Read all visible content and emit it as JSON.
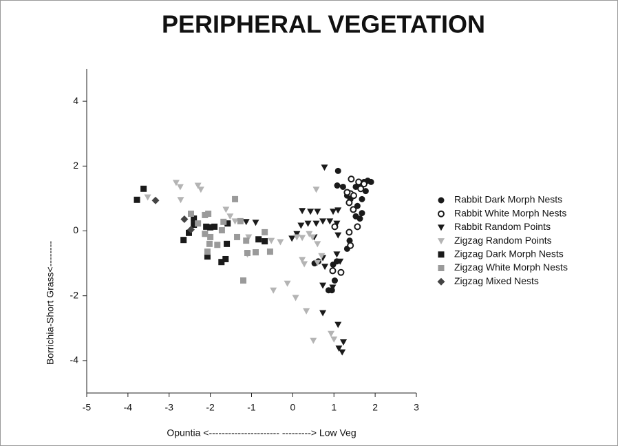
{
  "chart_data": {
    "type": "scatter",
    "title": "PERIPHERAL VEGETATION",
    "xlabel": "Opuntia <---------------------- ---------> Low Veg",
    "ylabel": "Borrichia-Short Grass<--------",
    "xlim": [
      -5,
      3
    ],
    "ylim": [
      -5,
      5
    ],
    "xticks": [
      -5,
      -4,
      -3,
      -2,
      -1,
      0,
      1,
      2,
      3
    ],
    "yticks": [
      -4,
      -2,
      0,
      2,
      4
    ],
    "legend": "right",
    "series": [
      {
        "name": "Rabbit Dark Morph Nests",
        "color": "#1a1a1a",
        "marker": "circle",
        "x": [
          1.1,
          1.08,
          1.22,
          1.32,
          1.4,
          1.53,
          1.65,
          1.73,
          1.82,
          1.9,
          1.77,
          1.68,
          1.57,
          1.53,
          1.57,
          1.63,
          1.38,
          1.32,
          1.07,
          0.98,
          1.02,
          0.95,
          0.87,
          0.53,
          0.62,
          1.68
        ],
        "y": [
          1.85,
          1.4,
          1.36,
          1.09,
          0.98,
          1.36,
          1.45,
          1.51,
          1.55,
          1.51,
          1.23,
          0.98,
          0.77,
          0.45,
          0.13,
          0.38,
          -0.3,
          -0.55,
          -0.94,
          -1.04,
          -1.53,
          -1.83,
          -1.83,
          -1.0,
          -0.94,
          0.55
        ]
      },
      {
        "name": "Rabbit White Morph Nests",
        "color": "#1a1a1a",
        "marker": "open-circle",
        "x": [
          1.42,
          1.6,
          1.73,
          1.65,
          1.4,
          1.32,
          1.48,
          1.37,
          1.47,
          1.57,
          1.37,
          1.02,
          1.4,
          0.97,
          1.17
        ],
        "y": [
          1.6,
          1.51,
          1.45,
          1.3,
          1.15,
          1.19,
          1.09,
          0.87,
          0.66,
          0.13,
          -0.04,
          0.13,
          -0.45,
          -1.23,
          -1.28
        ]
      },
      {
        "name": "Rabbit Random Points",
        "color": "#1a1a1a",
        "marker": "triangle-down",
        "x": [
          0.77,
          0.23,
          0.43,
          0.6,
          0.37,
          0.2,
          0.1,
          -0.02,
          0.57,
          0.73,
          0.9,
          0.98,
          1.1,
          1.07,
          -1.13,
          -0.9,
          0.52,
          0.73,
          1.07,
          1.15,
          0.78,
          0.73,
          0.97,
          0.73,
          1.1,
          1.23,
          1.12,
          1.2,
          1.1
        ],
        "y": [
          1.96,
          0.62,
          0.6,
          0.6,
          0.23,
          0.17,
          -0.09,
          -0.23,
          0.23,
          0.3,
          0.3,
          0.6,
          0.64,
          0.23,
          0.28,
          0.26,
          -0.19,
          -0.83,
          -0.72,
          -0.94,
          -1.1,
          -1.68,
          -1.74,
          -2.53,
          -2.89,
          -3.43,
          -3.62,
          -3.74,
          -0.13
        ]
      },
      {
        "name": "Zigzag Random Points",
        "color": "#b4b4b4",
        "marker": "triangle-down",
        "x": [
          -2.83,
          -2.73,
          -2.72,
          -2.3,
          -2.23,
          -3.52,
          -1.62,
          -1.52,
          -1.4,
          -1.07,
          -1.1,
          -0.52,
          -0.3,
          -0.47,
          -0.13,
          0.07,
          0.33,
          0.57,
          0.5,
          0.93,
          1.0,
          0.23,
          0.28,
          0.4,
          0.48,
          0.6,
          0.6,
          0.7,
          0.1,
          0.23
        ],
        "y": [
          1.49,
          1.36,
          0.96,
          1.4,
          1.28,
          1.04,
          0.66,
          0.45,
          0.3,
          -0.19,
          -0.72,
          -0.3,
          -0.34,
          -1.83,
          -1.62,
          -2.06,
          -2.47,
          1.28,
          -3.38,
          -3.17,
          -3.34,
          -0.89,
          -1.02,
          -0.09,
          -0.19,
          -0.4,
          -0.98,
          -0.77,
          -0.19,
          -0.21
        ]
      },
      {
        "name": "Zigzag Dark Morph Nests",
        "color": "#1a1a1a",
        "marker": "square",
        "x": [
          -3.78,
          -3.62,
          -2.65,
          -2.52,
          -2.4,
          -2.4,
          -2.1,
          -2.0,
          -1.9,
          -2.07,
          -1.73,
          -1.63,
          -1.6,
          -1.58,
          -0.83,
          -0.68
        ],
        "y": [
          0.96,
          1.3,
          -0.28,
          -0.06,
          0.19,
          0.38,
          0.13,
          0.11,
          0.13,
          -0.79,
          -0.96,
          -0.87,
          -0.4,
          0.23,
          -0.26,
          -0.32
        ]
      },
      {
        "name": "Zigzag White Morph Nests",
        "color": "#9a9a9a",
        "marker": "square",
        "x": [
          -2.47,
          -2.13,
          -2.05,
          -2.3,
          -2.13,
          -2.0,
          -2.07,
          -1.83,
          -2.02,
          -1.72,
          -1.4,
          -1.27,
          -1.35,
          -1.13,
          -1.1,
          -0.9,
          -0.68,
          -0.55,
          -1.2,
          -1.68
        ],
        "y": [
          0.53,
          0.49,
          0.53,
          0.23,
          -0.09,
          -0.19,
          -0.64,
          -0.43,
          -0.4,
          0.02,
          0.98,
          0.3,
          -0.19,
          -0.3,
          -0.68,
          -0.66,
          -0.04,
          -0.64,
          -1.53,
          0.28
        ]
      },
      {
        "name": "Zigzag Mixed Nests",
        "color": "#444444",
        "marker": "diamond",
        "x": [
          -3.33,
          -2.63,
          -2.47
        ],
        "y": [
          0.94,
          0.36,
          0.04
        ]
      }
    ]
  }
}
